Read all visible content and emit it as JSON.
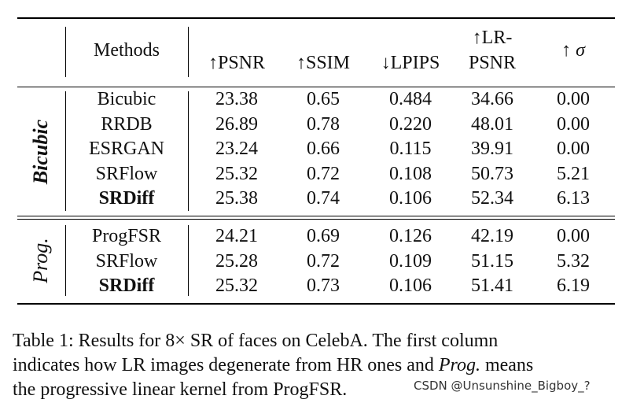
{
  "table": {
    "headers": {
      "methods": "Methods",
      "psnr": "↑PSNR",
      "ssim": "↑SSIM",
      "lpips": "↓LPIPS",
      "lrpsnr_top": "↑LR-",
      "lrpsnr_bottom": "PSNR",
      "sigma_arrow": "↑",
      "sigma_symbol": "σ"
    },
    "groups": [
      {
        "label": "Bicubic",
        "rows": [
          {
            "method": "Bicubic",
            "psnr": "23.38",
            "ssim": "0.65",
            "lpips": "0.484",
            "lrpsnr": "34.66",
            "sigma": "0.00",
            "bold": false
          },
          {
            "method": "RRDB",
            "psnr": "26.89",
            "ssim": "0.78",
            "lpips": "0.220",
            "lrpsnr": "48.01",
            "sigma": "0.00",
            "bold": false
          },
          {
            "method": "ESRGAN",
            "psnr": "23.24",
            "ssim": "0.66",
            "lpips": "0.115",
            "lrpsnr": "39.91",
            "sigma": "0.00",
            "bold": false
          },
          {
            "method": "SRFlow",
            "psnr": "25.32",
            "ssim": "0.72",
            "lpips": "0.108",
            "lrpsnr": "50.73",
            "sigma": "5.21",
            "bold": false
          },
          {
            "method": "SRDiff",
            "psnr": "25.38",
            "ssim": "0.74",
            "lpips": "0.106",
            "lrpsnr": "52.34",
            "sigma": "6.13",
            "bold": true
          }
        ]
      },
      {
        "label": "Prog.",
        "rows": [
          {
            "method": "ProgFSR",
            "psnr": "24.21",
            "ssim": "0.69",
            "lpips": "0.126",
            "lrpsnr": "42.19",
            "sigma": "0.00",
            "bold": false
          },
          {
            "method": "SRFlow",
            "psnr": "25.28",
            "ssim": "0.72",
            "lpips": "0.109",
            "lrpsnr": "51.15",
            "sigma": "5.32",
            "bold": false
          },
          {
            "method": "SRDiff",
            "psnr": "25.32",
            "ssim": "0.73",
            "lpips": "0.106",
            "lrpsnr": "51.41",
            "sigma": "6.19",
            "bold": true
          }
        ]
      }
    ]
  },
  "caption": {
    "line1": "Table 1:  Results for 8× SR of faces on CelebA. The first column",
    "line2_a": "indicates how LR images degenerate from HR ones and ",
    "line2_em": "Prog.",
    "line2_b": " means",
    "line3": "the progressive linear kernel from ProgFSR."
  },
  "watermark": "CSDN @Unsunshine_Bigboy_?"
}
